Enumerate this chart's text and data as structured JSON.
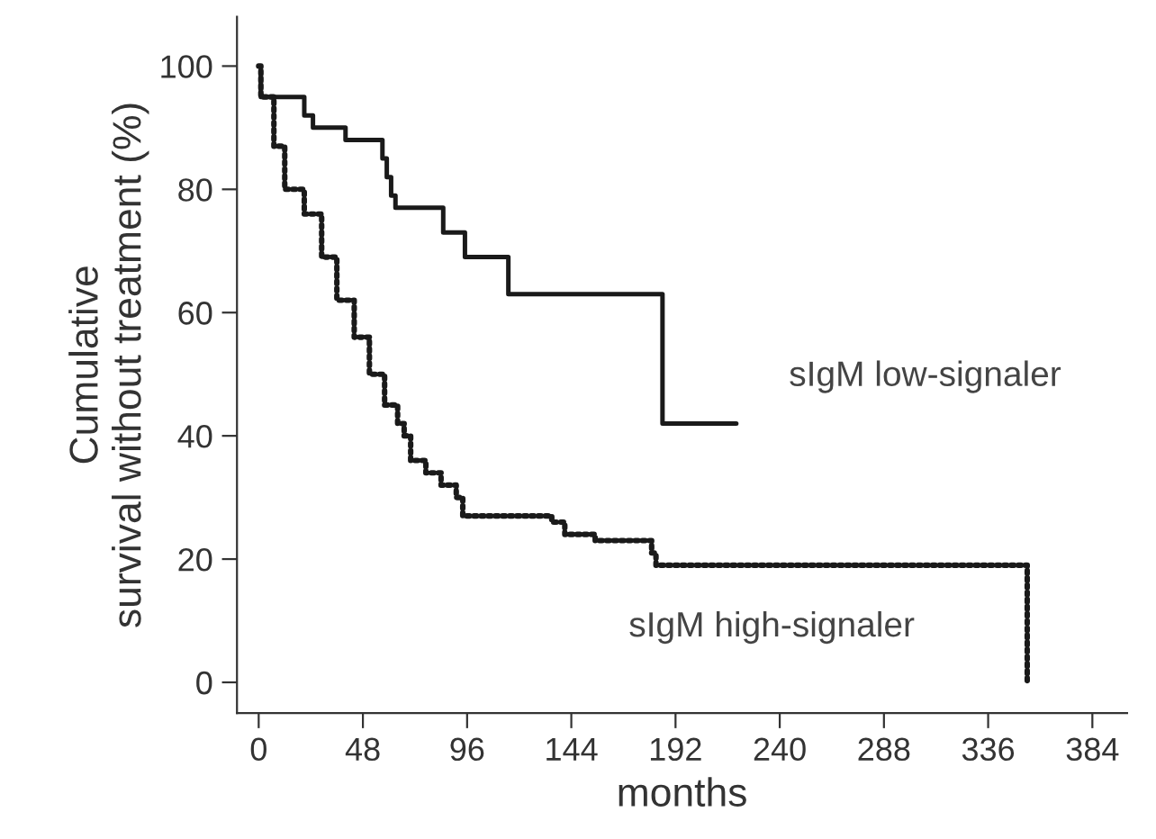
{
  "chart_data": {
    "type": "step",
    "xlabel": "months",
    "ylabel": "Cumulative\nsurvival without treatment (%)",
    "xlim": [
      -10,
      400
    ],
    "ylim": [
      -5,
      108
    ],
    "xticks": [
      0,
      48,
      96,
      144,
      192,
      240,
      288,
      336,
      384
    ],
    "yticks": [
      0,
      20,
      40,
      60,
      80,
      100
    ],
    "grid": false,
    "legend": false,
    "series": [
      {
        "name": "sIgM low-signaler",
        "color": "#1a1a1a",
        "line_style": "solid",
        "x": [
          0,
          1,
          21,
          25,
          40,
          57,
          59,
          61,
          63,
          85,
          95,
          115,
          186,
          220
        ],
        "values": [
          100,
          95,
          92,
          90,
          88,
          85,
          82,
          79,
          77,
          73,
          69,
          63,
          42,
          42
        ]
      },
      {
        "name": "sIgM high-signaler",
        "color": "#1a1a1a",
        "line_style": "dotted",
        "x": [
          0,
          1,
          7,
          12,
          21,
          29,
          36,
          44,
          51,
          58,
          64,
          67,
          70,
          77,
          84,
          91,
          94,
          135,
          141,
          155,
          181,
          183,
          354,
          354
        ],
        "values": [
          100,
          95,
          87,
          80,
          76,
          69,
          62,
          56,
          50,
          45,
          42,
          40,
          36,
          34,
          32,
          30,
          27,
          26,
          24,
          23,
          21,
          19,
          19,
          0
        ]
      }
    ]
  }
}
